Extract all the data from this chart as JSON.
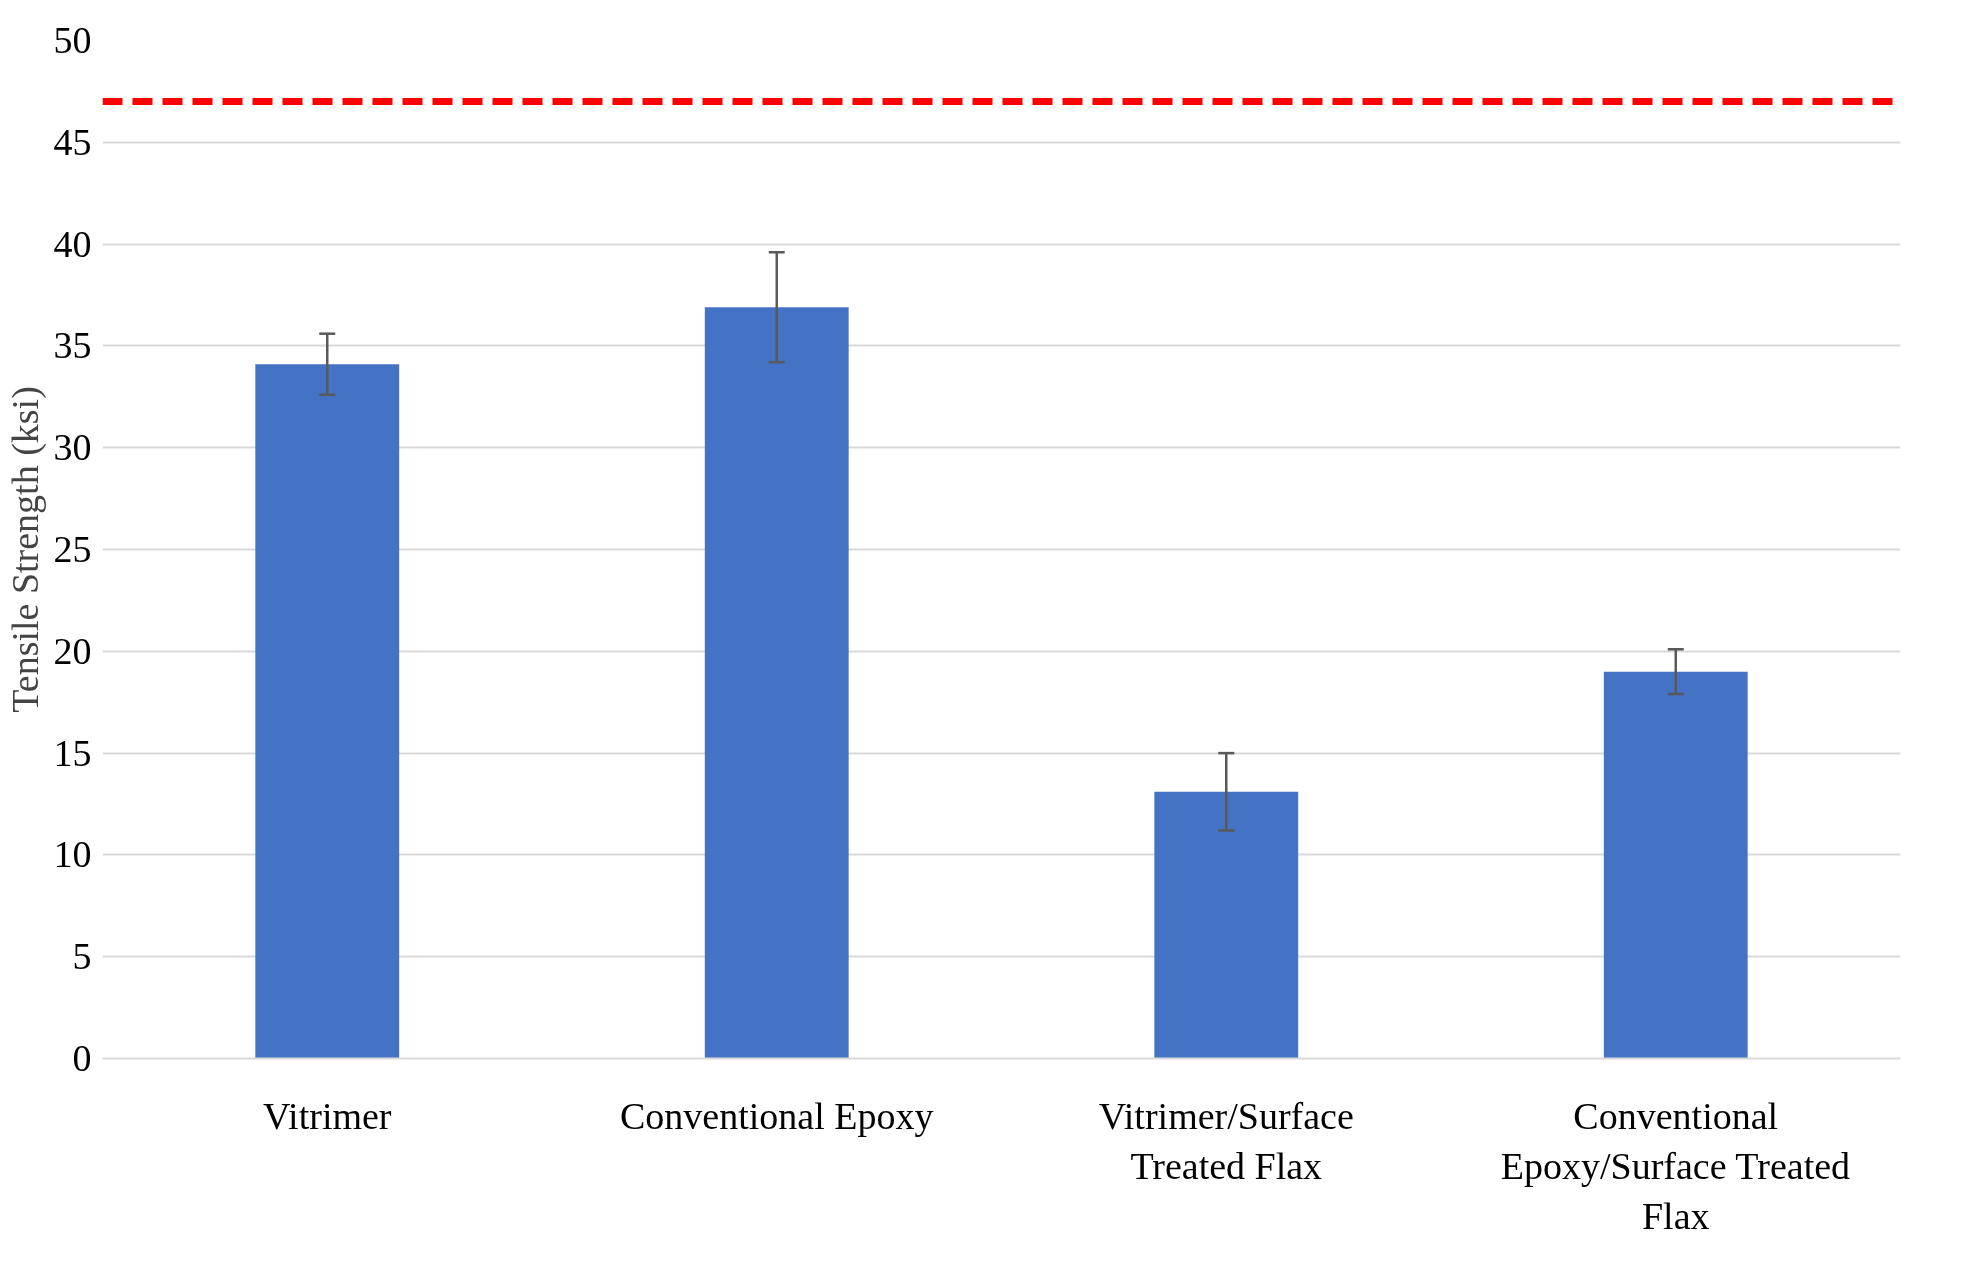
{
  "chart_data": {
    "type": "bar",
    "ylabel": "Tensile Strength (ksi)",
    "categories": [
      "Vitrimer",
      "Conventional Epoxy",
      "Vitrimer/Surface Treated Flax",
      "Conventional Epoxy/Surface Treated Flax"
    ],
    "values": [
      34.1,
      36.9,
      13.1,
      19.0
    ],
    "errors": [
      1.5,
      2.7,
      1.9,
      1.1
    ],
    "color": "#4472c4",
    "ylim": [
      0,
      50
    ],
    "yticks": [
      0,
      5,
      10,
      15,
      20,
      25,
      30,
      35,
      40,
      45,
      50
    ],
    "ref_lines": [
      {
        "axis": "y",
        "value": 47,
        "color": "#ff0000",
        "line_style": "dashed"
      }
    ],
    "grid": "y"
  }
}
